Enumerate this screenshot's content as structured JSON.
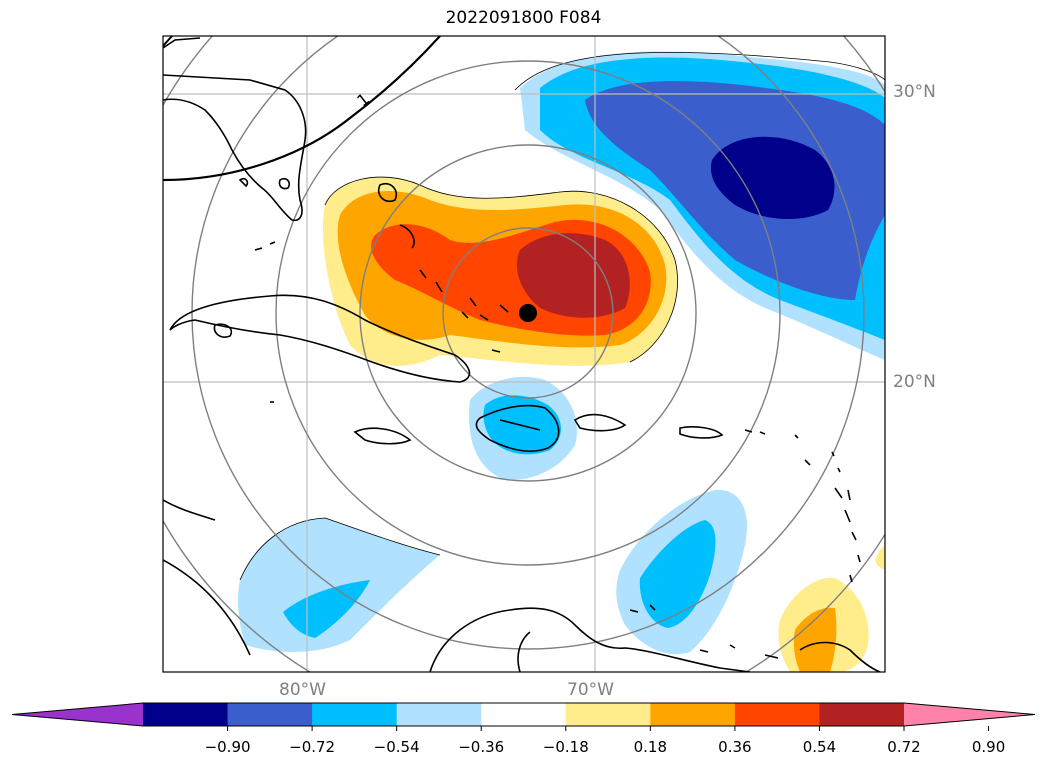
{
  "title": "2022091800 F084",
  "lat_labels": [
    "30°N",
    "20°N"
  ],
  "lon_labels": [
    "80°W",
    "70°W"
  ],
  "contour_label": "1",
  "colorbar": {
    "ticks": [
      "−0.90",
      "−0.72",
      "−0.54",
      "−0.36",
      "−0.18",
      "0.18",
      "0.36",
      "0.54",
      "0.72",
      "0.90"
    ],
    "colors": [
      "#9a32cd",
      "#00008b",
      "#3a5fcd",
      "#00bfff",
      "#b0e2ff",
      "#ffffff",
      "#ffec8b",
      "#ffa500",
      "#ff4500",
      "#b22222",
      "#ff82ab"
    ]
  }
}
